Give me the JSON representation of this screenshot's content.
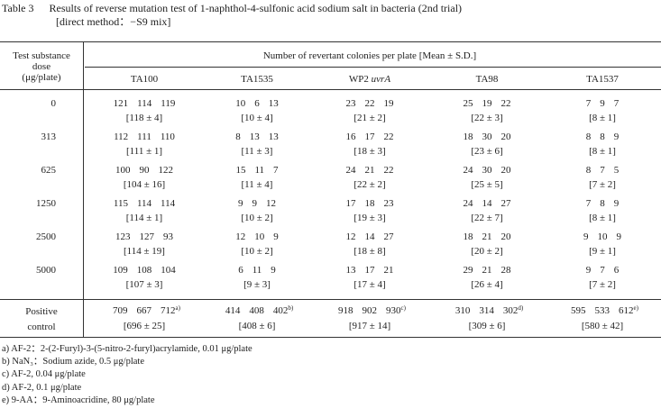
{
  "header": {
    "label": "Table 3",
    "title": "Results of reverse mutation test of 1-naphthol-4-sulfonic acid sodium salt in bacteria (2nd trial)",
    "subtitle": "[direct method：−S9 mix]"
  },
  "table": {
    "dose_header": [
      "Test substance",
      "dose",
      "(μg/plate)"
    ],
    "group_header": "Number of revertant colonies per plate [Mean ± S.D.]",
    "strains": [
      {
        "name": "TA100"
      },
      {
        "name": "TA1535"
      },
      {
        "name": "WP2",
        "suffix": "uvrA"
      },
      {
        "name": "TA98"
      },
      {
        "name": "TA1537"
      }
    ],
    "rows": [
      {
        "dose": 0,
        "cells": [
          {
            "values": [
              121,
              114,
              119
            ],
            "mean": "[118 ± 4]"
          },
          {
            "values": [
              10,
              6,
              13
            ],
            "mean": "[10 ± 4]"
          },
          {
            "values": [
              23,
              22,
              19
            ],
            "mean": "[21 ± 2]"
          },
          {
            "values": [
              25,
              19,
              22
            ],
            "mean": "[22 ± 3]"
          },
          {
            "values": [
              7,
              9,
              7
            ],
            "mean": "[8 ± 1]"
          }
        ]
      },
      {
        "dose": 313,
        "cells": [
          {
            "values": [
              112,
              111,
              110
            ],
            "mean": "[111 ± 1]"
          },
          {
            "values": [
              8,
              13,
              13
            ],
            "mean": "[11 ± 3]"
          },
          {
            "values": [
              16,
              17,
              22
            ],
            "mean": "[18 ± 3]"
          },
          {
            "values": [
              18,
              30,
              20
            ],
            "mean": "[23 ± 6]"
          },
          {
            "values": [
              8,
              8,
              9
            ],
            "mean": "[8 ± 1]"
          }
        ]
      },
      {
        "dose": 625,
        "cells": [
          {
            "values": [
              100,
              90,
              122
            ],
            "mean": "[104 ± 16]"
          },
          {
            "values": [
              15,
              11,
              7
            ],
            "mean": "[11 ± 4]"
          },
          {
            "values": [
              24,
              21,
              22
            ],
            "mean": "[22 ± 2]"
          },
          {
            "values": [
              24,
              30,
              20
            ],
            "mean": "[25 ± 5]"
          },
          {
            "values": [
              8,
              7,
              5
            ],
            "mean": "[7 ± 2]"
          }
        ]
      },
      {
        "dose": 1250,
        "cells": [
          {
            "values": [
              115,
              114,
              114
            ],
            "mean": "[114 ± 1]"
          },
          {
            "values": [
              9,
              9,
              12
            ],
            "mean": "[10 ± 2]"
          },
          {
            "values": [
              17,
              18,
              23
            ],
            "mean": "[19 ± 3]"
          },
          {
            "values": [
              24,
              14,
              27
            ],
            "mean": "[22 ± 7]"
          },
          {
            "values": [
              7,
              8,
              9
            ],
            "mean": "[8 ± 1]"
          }
        ]
      },
      {
        "dose": 2500,
        "cells": [
          {
            "values": [
              123,
              127,
              93
            ],
            "mean": "[114 ± 19]"
          },
          {
            "values": [
              12,
              10,
              9
            ],
            "mean": "[10 ± 2]"
          },
          {
            "values": [
              12,
              14,
              27
            ],
            "mean": "[18 ± 8]"
          },
          {
            "values": [
              18,
              21,
              20
            ],
            "mean": "[20 ± 2]"
          },
          {
            "values": [
              9,
              10,
              9
            ],
            "mean": "[9 ± 1]"
          }
        ]
      },
      {
        "dose": 5000,
        "cells": [
          {
            "values": [
              109,
              108,
              104
            ],
            "mean": "[107 ± 3]"
          },
          {
            "values": [
              6,
              11,
              9
            ],
            "mean": "[9 ± 3]"
          },
          {
            "values": [
              13,
              17,
              21
            ],
            "mean": "[17 ± 4]"
          },
          {
            "values": [
              29,
              21,
              28
            ],
            "mean": "[26 ± 4]"
          },
          {
            "values": [
              9,
              7,
              6
            ],
            "mean": "[7 ± 2]"
          }
        ]
      }
    ],
    "positive_control": {
      "label": [
        "Positive",
        "control"
      ],
      "cells": [
        {
          "values": [
            709,
            667,
            712
          ],
          "note": "a)",
          "mean": "[696 ± 25]"
        },
        {
          "values": [
            414,
            408,
            402
          ],
          "note": "b)",
          "mean": "[408 ± 6]"
        },
        {
          "values": [
            918,
            902,
            930
          ],
          "note": "c)",
          "mean": "[917 ± 14]"
        },
        {
          "values": [
            310,
            314,
            302
          ],
          "note": "d)",
          "mean": "[309 ± 6]"
        },
        {
          "values": [
            595,
            533,
            612
          ],
          "note": "e)",
          "mean": "[580 ± 42]"
        }
      ]
    }
  },
  "footnotes": [
    "a) AF-2：2-(2-Furyl)-3-(5-nitro-2-furyl)acrylamide, 0.01 μg/plate",
    "b) NaN₃：Sodium azide, 0.5 μg/plate",
    "c) AF-2, 0.04 μg/plate",
    "d) AF-2, 0.1 μg/plate",
    "e) 9-AA：9-Aminoacridine, 80 μg/plate"
  ]
}
